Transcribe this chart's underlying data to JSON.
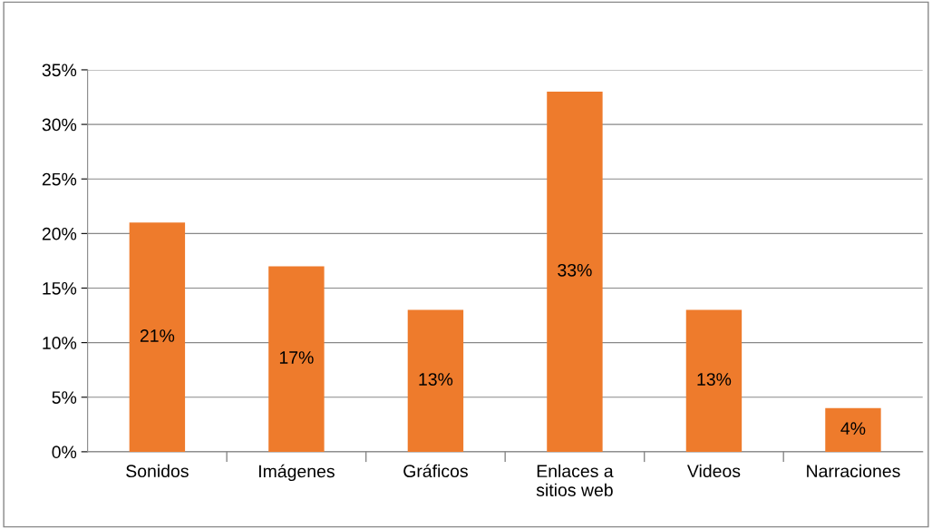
{
  "chart_data": {
    "type": "bar",
    "categories": [
      "Sonidos",
      "Imágenes",
      "Gráficos",
      "Enlaces a\nsitios web",
      "Videos",
      "Narraciones"
    ],
    "values": [
      21,
      17,
      13,
      33,
      13,
      4
    ],
    "color": "#ee7b2c",
    "ylim": [
      0,
      35
    ],
    "yticks": [
      {
        "value": 0,
        "label": "0%"
      },
      {
        "value": 5,
        "label": "5%"
      },
      {
        "value": 10,
        "label": "10%"
      },
      {
        "value": 15,
        "label": "15%"
      },
      {
        "value": 20,
        "label": "20%"
      },
      {
        "value": 25,
        "label": "25%"
      },
      {
        "value": 30,
        "label": "30%"
      },
      {
        "value": 35,
        "label": "35%"
      }
    ],
    "value_labels": [
      "21%",
      "17%",
      "13%",
      "33%",
      "13%",
      "4%"
    ],
    "grid": "y",
    "legend": false
  }
}
